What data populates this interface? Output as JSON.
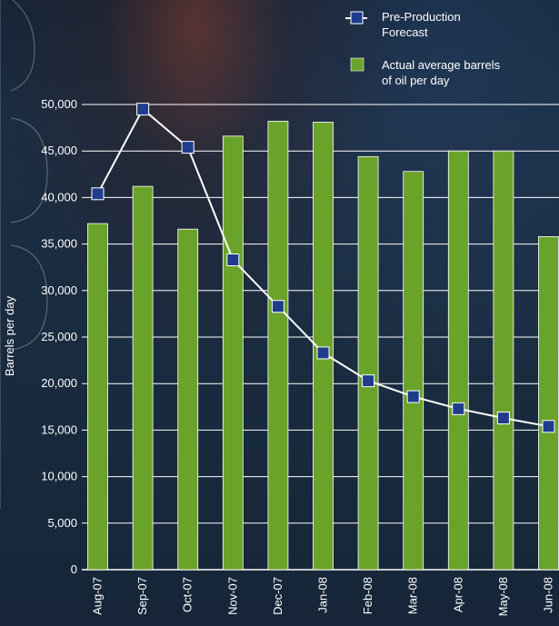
{
  "chart_data": {
    "type": "bar",
    "categories": [
      "Aug-07",
      "Sep-07",
      "Oct-07",
      "Nov-07",
      "Dec-07",
      "Jan-08",
      "Feb-08",
      "Mar-08",
      "Apr-08",
      "May-08",
      "Jun-08"
    ],
    "series": [
      {
        "name": "Actual average barrels of oil per day",
        "type": "bar",
        "color": "#6aa32a",
        "values": [
          37200,
          41200,
          36600,
          46600,
          48200,
          48100,
          44400,
          42800,
          45000,
          45000,
          35800
        ]
      },
      {
        "name": "Pre-Production Forecast",
        "type": "line",
        "color": "#ffffff",
        "marker_color": "#1f3d8c",
        "values": [
          40400,
          49500,
          45400,
          33300,
          28300,
          23300,
          20300,
          18600,
          17300,
          16300,
          15400
        ]
      }
    ],
    "title": "",
    "xlabel": "",
    "ylabel": "Barrels per day",
    "ylim": [
      0,
      50000
    ],
    "yticks": [
      0,
      5000,
      10000,
      15000,
      20000,
      25000,
      30000,
      35000,
      40000,
      45000,
      50000
    ],
    "ytick_labels": [
      "0",
      "5,000",
      "10,000",
      "15,000",
      "20,000",
      "25,000",
      "30,000",
      "35,000",
      "40,000",
      "45,000",
      "50,000"
    ],
    "grid": true,
    "legend": {
      "placement": "top-right",
      "entries": [
        {
          "label_lines": [
            "Pre-Production",
            "Forecast"
          ],
          "kind": "line-marker"
        },
        {
          "label_lines": [
            "Actual average barrels",
            "of oil per day"
          ],
          "kind": "bar"
        }
      ]
    }
  }
}
